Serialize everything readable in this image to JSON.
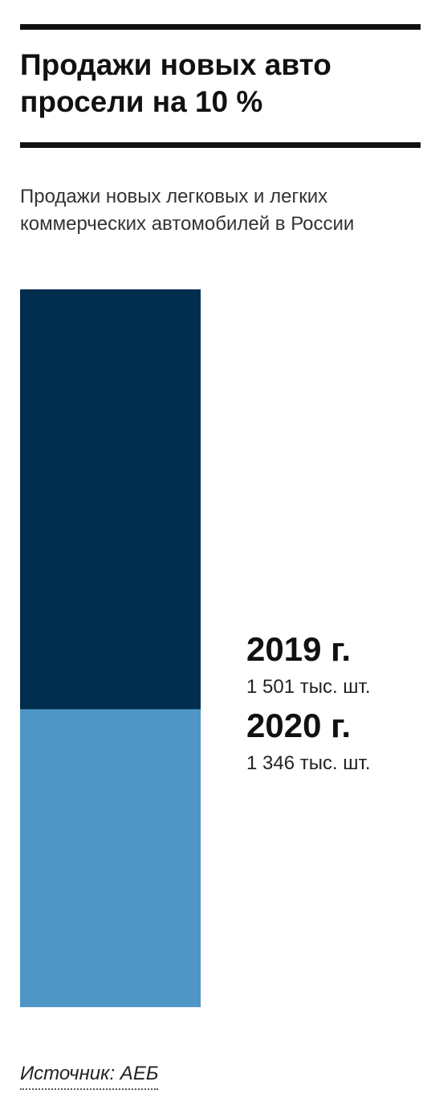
{
  "chart_data": {
    "type": "bar",
    "title": "Продажи новых авто просели на 10 %",
    "subtitle": "Продажи новых легковых и легких коммерческих автомобилей в России",
    "categories": [
      "2019 г.",
      "2020 г."
    ],
    "series": [
      {
        "name": "2019 г.",
        "color": "#012e4d",
        "values": [
          1501,
          null
        ],
        "value_labels": [
          "1 501 тыс. шт.",
          null
        ]
      },
      {
        "name": "2020 г.",
        "color": "#4f96c6",
        "values": [
          null,
          1346
        ],
        "value_labels": [
          null,
          "1 346 тыс. шт."
        ]
      }
    ],
    "ylim": [
      1236,
      1501
    ],
    "source": "Источник: АЕБ"
  }
}
